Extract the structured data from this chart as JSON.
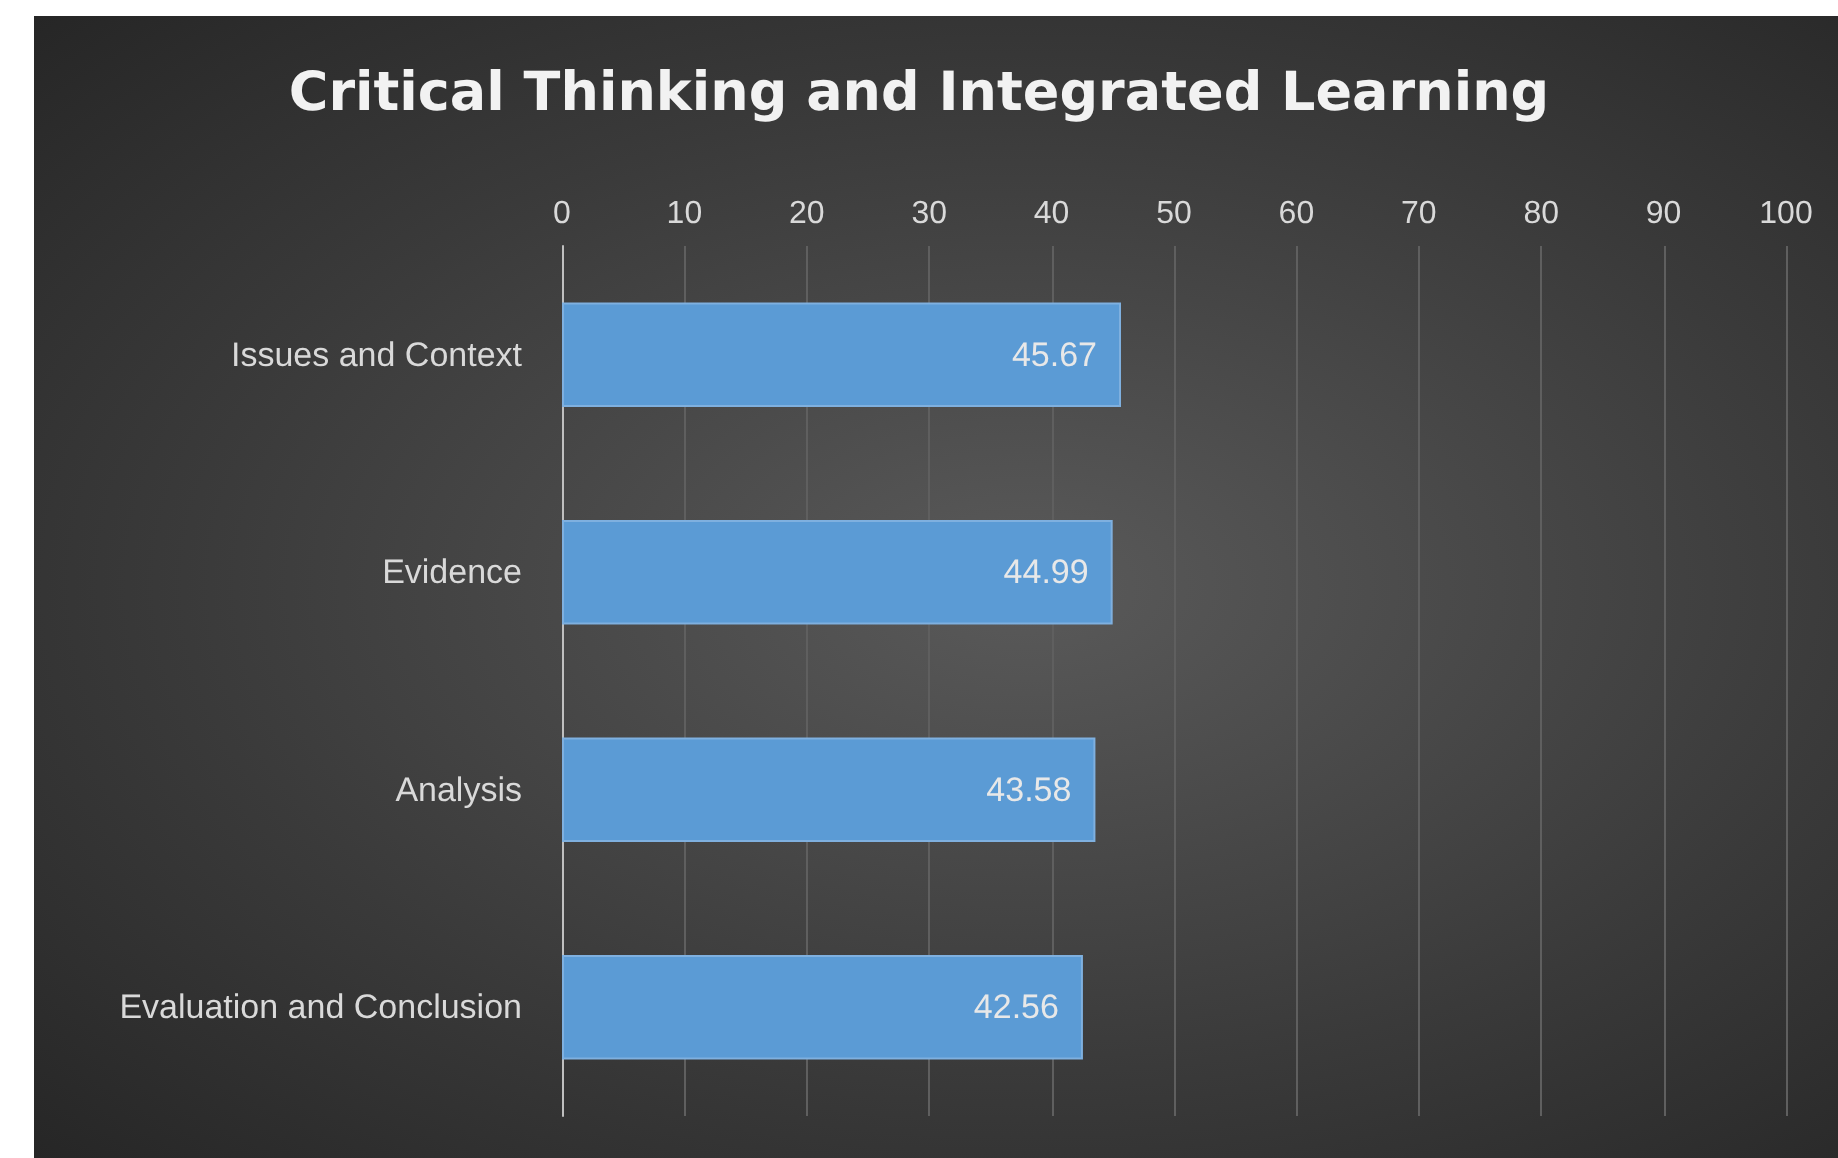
{
  "chart_data": {
    "type": "bar",
    "orientation": "horizontal",
    "title": "Critical Thinking and Integrated Learning",
    "categories": [
      "Issues and Context",
      "Evidence",
      "Analysis",
      "Evaluation and Conclusion"
    ],
    "values": [
      45.67,
      44.99,
      43.58,
      42.56
    ],
    "color": "#5b9bd5",
    "xlim": [
      0,
      100
    ],
    "xticks": [
      0,
      10,
      20,
      30,
      40,
      50,
      60,
      70,
      80,
      90,
      100
    ],
    "grid": "x",
    "data_labels": true
  }
}
